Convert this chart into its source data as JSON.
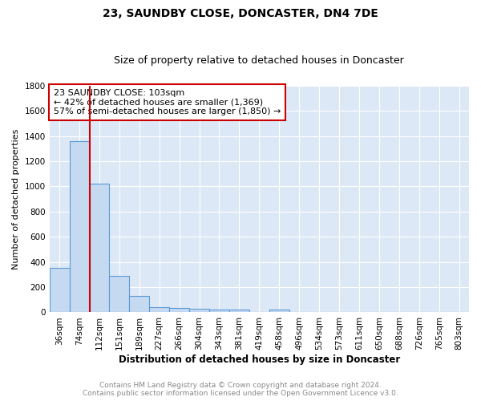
{
  "title": "23, SAUNDBY CLOSE, DONCASTER, DN4 7DE",
  "subtitle": "Size of property relative to detached houses in Doncaster",
  "xlabel": "Distribution of detached houses by size in Doncaster",
  "ylabel": "Number of detached properties",
  "bin_labels": [
    "36sqm",
    "74sqm",
    "112sqm",
    "151sqm",
    "189sqm",
    "227sqm",
    "266sqm",
    "304sqm",
    "343sqm",
    "381sqm",
    "419sqm",
    "458sqm",
    "496sqm",
    "534sqm",
    "573sqm",
    "611sqm",
    "650sqm",
    "688sqm",
    "726sqm",
    "765sqm",
    "803sqm"
  ],
  "bar_heights": [
    350,
    1360,
    1020,
    290,
    130,
    40,
    35,
    30,
    20,
    20,
    0,
    20,
    0,
    0,
    0,
    0,
    0,
    0,
    0,
    0,
    0
  ],
  "bar_color": "#c5d9f1",
  "bar_edge_color": "#5b9bd5",
  "bar_edge_width": 0.8,
  "red_line_color": "#cc0000",
  "annotation_line1": "23 SAUNDBY CLOSE: 103sqm",
  "annotation_line2": "← 42% of detached houses are smaller (1,369)",
  "annotation_line3": "57% of semi-detached houses are larger (1,850) →",
  "annotation_box_color": "#ffffff",
  "annotation_box_edge_color": "#cc0000",
  "ylim": [
    0,
    1800
  ],
  "yticks": [
    0,
    200,
    400,
    600,
    800,
    1000,
    1200,
    1400,
    1600,
    1800
  ],
  "bg_color": "#dce8f5",
  "footer_line1": "Contains HM Land Registry data © Crown copyright and database right 2024.",
  "footer_line2": "Contains public sector information licensed under the Open Government Licence v3.0.",
  "title_fontsize": 10,
  "subtitle_fontsize": 9,
  "ylabel_fontsize": 8,
  "xlabel_fontsize": 8.5,
  "tick_fontsize": 7.5,
  "annotation_fontsize": 8,
  "footer_fontsize": 6.5,
  "footer_color": "#888888"
}
